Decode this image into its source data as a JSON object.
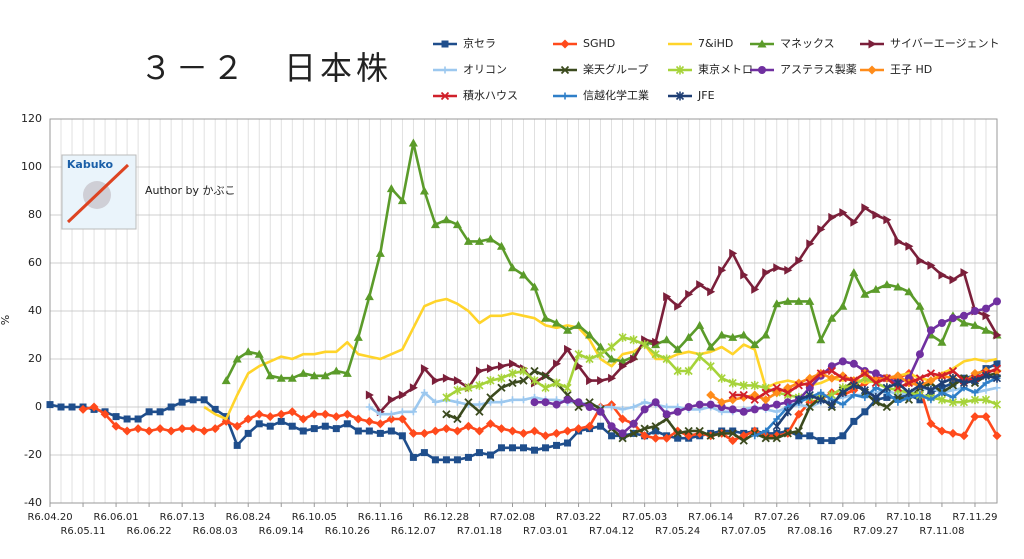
{
  "chart_data": {
    "type": "line",
    "title": "３－２　日本株",
    "y_label": "%",
    "annotation": "Author by かぶこ",
    "logo_text": "Kabuko",
    "ylim": [
      -40,
      120
    ],
    "yticks": [
      -40,
      -20,
      0,
      20,
      40,
      60,
      80,
      100,
      120
    ],
    "grid": true,
    "categories": [
      "R6.04.20",
      null,
      null,
      "R6.05.11",
      null,
      null,
      "R6.06.01",
      null,
      null,
      "R6.06.22",
      null,
      null,
      "R6.07.13",
      null,
      null,
      "R6.08.03",
      null,
      null,
      "R6.08.24",
      null,
      null,
      "R6.09.14",
      null,
      null,
      "R6.10.05",
      null,
      null,
      "R6.10.26",
      null,
      null,
      "R6.11.16",
      null,
      null,
      "R6.12.07",
      null,
      null,
      "R6.12.28",
      null,
      null,
      "R7.01.18",
      null,
      null,
      "R7.02.08",
      null,
      null,
      "R7.03.01",
      null,
      null,
      "R7.03.22",
      null,
      null,
      "R7.04.12",
      null,
      null,
      "R7.05.03",
      null,
      null,
      "R7.05.24",
      null,
      null,
      "R7.06.14",
      null,
      null,
      "R7.07.05",
      null,
      null,
      "R7.07.26",
      null,
      null,
      "R7.08.16",
      null,
      null,
      "R7.09.06",
      null,
      null,
      "R7.09.27",
      null,
      null,
      "R7.10.18",
      null,
      null,
      "R7.11.08",
      null,
      null,
      "R7.11.29",
      null,
      null
    ],
    "series": [
      {
        "name": "京セラ",
        "color": "#1f4e8c",
        "marker": "square",
        "values": [
          1,
          0,
          0,
          0,
          -1,
          -2,
          -4,
          -5,
          -5,
          -2,
          -2,
          0,
          2,
          3,
          3,
          -1,
          -4,
          -16,
          -11,
          -7,
          -8,
          -6,
          -8,
          -10,
          -9,
          -8,
          -9,
          -7,
          -10,
          -10,
          -11,
          -10,
          -12,
          -21,
          -19,
          -22,
          -22,
          -22,
          -21,
          -19,
          -20,
          -17,
          -17,
          -17,
          -18,
          -17,
          -16,
          -15,
          -10,
          -9,
          -8,
          -12,
          -12,
          -11,
          -12,
          -10,
          -12,
          -13,
          -13,
          -12,
          -11,
          -10,
          -10,
          -11,
          -10,
          -11,
          -11,
          -10,
          -12,
          -12,
          -14,
          -14,
          -12,
          -6,
          -2,
          3,
          4,
          4,
          5,
          3,
          6,
          8,
          10,
          12,
          13,
          16,
          18
        ]
      },
      {
        "name": "SGHD",
        "color": "#ff4a1c",
        "marker": "diamond",
        "values": [
          null,
          null,
          null,
          -1,
          0,
          -3,
          -8,
          -10,
          -9,
          -10,
          -9,
          -10,
          -9,
          -9,
          -10,
          -9,
          -6,
          -8,
          -5,
          -3,
          -4,
          -3,
          -2,
          -5,
          -3,
          -3,
          -4,
          -3,
          -5,
          -6,
          -7,
          -5,
          -5,
          -11,
          -11,
          -10,
          -9,
          -10,
          -8,
          -10,
          -7,
          -9,
          -10,
          -11,
          -10,
          -12,
          -11,
          -10,
          -9,
          -8,
          0,
          1,
          -5,
          -7,
          -12,
          -13,
          -13,
          -10,
          -12,
          -11,
          -12,
          -11,
          -14,
          -12,
          -10,
          -12,
          -12,
          -11,
          -3,
          2,
          3,
          6,
          5,
          7,
          10,
          12,
          12,
          12,
          14,
          8,
          -7,
          -10,
          -11,
          -12,
          -4,
          -4,
          -12
        ]
      },
      {
        "name": "7&iHD",
        "color": "#ffd42a",
        "marker": "none",
        "values": [
          null,
          null,
          null,
          null,
          null,
          null,
          null,
          null,
          null,
          null,
          null,
          null,
          null,
          null,
          0,
          -3,
          -5,
          5,
          14,
          17,
          19,
          21,
          20,
          22,
          22,
          23,
          23,
          27,
          22,
          21,
          20,
          22,
          24,
          33,
          42,
          44,
          45,
          43,
          40,
          35,
          38,
          38,
          39,
          38,
          37,
          34,
          33,
          34,
          33,
          28,
          20,
          17,
          22,
          23,
          26,
          20,
          20,
          22,
          23,
          22,
          23,
          25,
          22,
          26,
          24,
          8,
          10,
          11,
          10,
          9,
          10,
          12,
          11,
          12,
          10,
          11,
          12,
          13,
          14,
          12,
          11,
          14,
          16,
          19,
          20,
          19,
          20
        ]
      },
      {
        "name": "マネックス",
        "color": "#5b9b2a",
        "marker": "triangle",
        "values": [
          null,
          null,
          null,
          null,
          null,
          null,
          null,
          null,
          null,
          null,
          null,
          null,
          null,
          null,
          null,
          null,
          11,
          20,
          23,
          22,
          13,
          12,
          12,
          14,
          13,
          13,
          15,
          14,
          29,
          46,
          64,
          91,
          86,
          110,
          90,
          76,
          78,
          76,
          69,
          69,
          70,
          67,
          58,
          55,
          50,
          37,
          35,
          32,
          34,
          30,
          25,
          20,
          19,
          21,
          27,
          26,
          28,
          24,
          29,
          34,
          25,
          30,
          29,
          30,
          26,
          30,
          43,
          44,
          44,
          44,
          28,
          37,
          42,
          56,
          47,
          49,
          51,
          50,
          48,
          42,
          30,
          27,
          38,
          35,
          34,
          32,
          30
        ]
      },
      {
        "name": "サイバーエージェント",
        "color": "#7b1f3a",
        "marker": "triangle-right",
        "values": [
          null,
          null,
          null,
          null,
          null,
          null,
          null,
          null,
          null,
          null,
          null,
          null,
          null,
          null,
          null,
          null,
          null,
          null,
          null,
          null,
          null,
          null,
          null,
          null,
          null,
          null,
          null,
          null,
          null,
          5,
          -2,
          3,
          5,
          8,
          16,
          11,
          12,
          11,
          8,
          15,
          16,
          17,
          18,
          16,
          10,
          13,
          18,
          24,
          17,
          11,
          11,
          12,
          17,
          20,
          28,
          27,
          46,
          42,
          47,
          51,
          48,
          57,
          64,
          55,
          49,
          56,
          58,
          57,
          61,
          68,
          74,
          79,
          81,
          77,
          83,
          80,
          78,
          69,
          67,
          61,
          59,
          55,
          53,
          56,
          40,
          38,
          30
        ]
      },
      {
        "name": "オリコン",
        "color": "#9cc8ef",
        "marker": "plus",
        "values": [
          null,
          null,
          null,
          null,
          null,
          null,
          null,
          null,
          null,
          null,
          null,
          null,
          null,
          null,
          null,
          null,
          null,
          null,
          null,
          null,
          null,
          null,
          null,
          null,
          null,
          null,
          null,
          null,
          null,
          0,
          -3,
          -3,
          -2,
          -2,
          6,
          2,
          3,
          2,
          1,
          1,
          2,
          2,
          3,
          3,
          4,
          3,
          3,
          2,
          2,
          1,
          0,
          0,
          -1,
          0,
          2,
          1,
          0,
          0,
          -1,
          -1,
          0,
          -2,
          -2,
          -1,
          0,
          -1,
          -2,
          0,
          1,
          0,
          2,
          3,
          4,
          5,
          5,
          6,
          7,
          5,
          6,
          7,
          8,
          6,
          7,
          8,
          6,
          7,
          8
        ]
      },
      {
        "name": "楽天グループ",
        "color": "#3b4a1e",
        "marker": "x",
        "values": [
          null,
          null,
          null,
          null,
          null,
          null,
          null,
          null,
          null,
          null,
          null,
          null,
          null,
          null,
          null,
          null,
          null,
          null,
          null,
          null,
          null,
          null,
          null,
          null,
          null,
          null,
          null,
          null,
          null,
          null,
          null,
          null,
          null,
          null,
          null,
          null,
          -3,
          -5,
          2,
          -2,
          4,
          8,
          10,
          11,
          15,
          13,
          10,
          5,
          0,
          2,
          -1,
          -9,
          -13,
          -11,
          -9,
          -8,
          -5,
          -11,
          -10,
          -10,
          -12,
          -11,
          -11,
          -14,
          -11,
          -13,
          -13,
          -11,
          -10,
          0,
          4,
          0,
          7,
          11,
          6,
          2,
          0,
          4,
          3,
          8,
          10,
          6,
          9,
          12,
          10,
          13,
          14
        ]
      },
      {
        "name": "東京メトロ",
        "color": "#a6d33a",
        "marker": "star",
        "values": [
          null,
          null,
          null,
          null,
          null,
          null,
          null,
          null,
          null,
          null,
          null,
          null,
          null,
          null,
          null,
          null,
          null,
          null,
          null,
          null,
          null,
          null,
          null,
          null,
          null,
          null,
          null,
          null,
          null,
          null,
          null,
          null,
          null,
          null,
          null,
          null,
          4,
          7,
          8,
          9,
          11,
          12,
          14,
          15,
          11,
          8,
          10,
          8,
          22,
          20,
          22,
          25,
          29,
          28,
          26,
          22,
          20,
          15,
          15,
          21,
          17,
          12,
          10,
          9,
          9,
          8,
          6,
          5,
          4,
          4,
          4,
          5,
          8,
          9,
          12,
          10,
          8,
          7,
          6,
          5,
          4,
          3,
          2,
          2,
          3,
          3,
          1
        ]
      },
      {
        "name": "アステラス製薬",
        "color": "#7030a0",
        "marker": "circle",
        "values": [
          null,
          null,
          null,
          null,
          null,
          null,
          null,
          null,
          null,
          null,
          null,
          null,
          null,
          null,
          null,
          null,
          null,
          null,
          null,
          null,
          null,
          null,
          null,
          null,
          null,
          null,
          null,
          null,
          null,
          null,
          null,
          null,
          null,
          null,
          null,
          null,
          null,
          null,
          null,
          null,
          null,
          null,
          null,
          null,
          2,
          2,
          1,
          3,
          2,
          0,
          -2,
          -8,
          -11,
          -7,
          -1,
          2,
          -3,
          -2,
          0,
          1,
          1,
          0,
          -1,
          -2,
          -1,
          0,
          1,
          2,
          3,
          8,
          13,
          17,
          19,
          18,
          15,
          14,
          12,
          10,
          12,
          22,
          32,
          35,
          37,
          38,
          40,
          41,
          44
        ]
      },
      {
        "name": "王子 HD",
        "color": "#ff8c1a",
        "marker": "diamond",
        "values": [
          null,
          null,
          null,
          null,
          null,
          null,
          null,
          null,
          null,
          null,
          null,
          null,
          null,
          null,
          null,
          null,
          null,
          null,
          null,
          null,
          null,
          null,
          null,
          null,
          null,
          null,
          null,
          null,
          null,
          null,
          null,
          null,
          null,
          null,
          null,
          null,
          null,
          null,
          null,
          null,
          null,
          null,
          null,
          null,
          null,
          null,
          null,
          null,
          null,
          null,
          null,
          null,
          null,
          null,
          null,
          null,
          null,
          null,
          null,
          null,
          5,
          2,
          3,
          4,
          5,
          3,
          6,
          8,
          10,
          12,
          14,
          12,
          13,
          11,
          14,
          11,
          12,
          13,
          10,
          9,
          11,
          13,
          12,
          10,
          14,
          15,
          15
        ]
      },
      {
        "name": "積水ハウス",
        "color": "#d0202a",
        "marker": "x",
        "values": [
          null,
          null,
          null,
          null,
          null,
          null,
          null,
          null,
          null,
          null,
          null,
          null,
          null,
          null,
          null,
          null,
          null,
          null,
          null,
          null,
          null,
          null,
          null,
          null,
          null,
          null,
          null,
          null,
          null,
          null,
          null,
          null,
          null,
          null,
          null,
          null,
          null,
          null,
          null,
          null,
          null,
          null,
          null,
          null,
          null,
          null,
          null,
          null,
          null,
          null,
          null,
          null,
          null,
          null,
          null,
          null,
          null,
          null,
          null,
          null,
          null,
          null,
          5,
          5,
          3,
          6,
          8,
          6,
          9,
          10,
          14,
          15,
          12,
          11,
          14,
          10,
          12,
          8,
          10,
          12,
          14,
          13,
          15,
          11,
          12,
          14,
          16
        ]
      },
      {
        "name": "信越化学工業",
        "color": "#2f7fc8",
        "marker": "plus",
        "values": [
          null,
          null,
          null,
          null,
          null,
          null,
          null,
          null,
          null,
          null,
          null,
          null,
          null,
          null,
          null,
          null,
          null,
          null,
          null,
          null,
          null,
          null,
          null,
          null,
          null,
          null,
          null,
          null,
          null,
          null,
          null,
          null,
          null,
          null,
          null,
          null,
          null,
          null,
          null,
          null,
          null,
          null,
          null,
          null,
          null,
          null,
          null,
          null,
          null,
          null,
          null,
          null,
          null,
          null,
          null,
          null,
          null,
          null,
          null,
          null,
          null,
          null,
          null,
          null,
          -12,
          -10,
          -5,
          0,
          2,
          4,
          6,
          3,
          1,
          5,
          4,
          8,
          6,
          2,
          4,
          5,
          3,
          6,
          4,
          8,
          6,
          10,
          12
        ]
      },
      {
        "name": "JFE",
        "color": "#1f3f74",
        "marker": "star",
        "values": [
          null,
          null,
          null,
          null,
          null,
          null,
          null,
          null,
          null,
          null,
          null,
          null,
          null,
          null,
          null,
          null,
          null,
          null,
          null,
          null,
          null,
          null,
          null,
          null,
          null,
          null,
          null,
          null,
          null,
          null,
          null,
          null,
          null,
          null,
          null,
          null,
          null,
          null,
          null,
          null,
          null,
          null,
          null,
          null,
          null,
          null,
          null,
          null,
          null,
          null,
          null,
          null,
          null,
          null,
          null,
          null,
          null,
          null,
          null,
          null,
          null,
          null,
          null,
          null,
          null,
          null,
          -8,
          -2,
          3,
          5,
          3,
          1,
          6,
          9,
          7,
          4,
          8,
          10,
          6,
          9,
          7,
          10,
          12,
          10,
          11,
          13,
          12
        ]
      }
    ]
  }
}
